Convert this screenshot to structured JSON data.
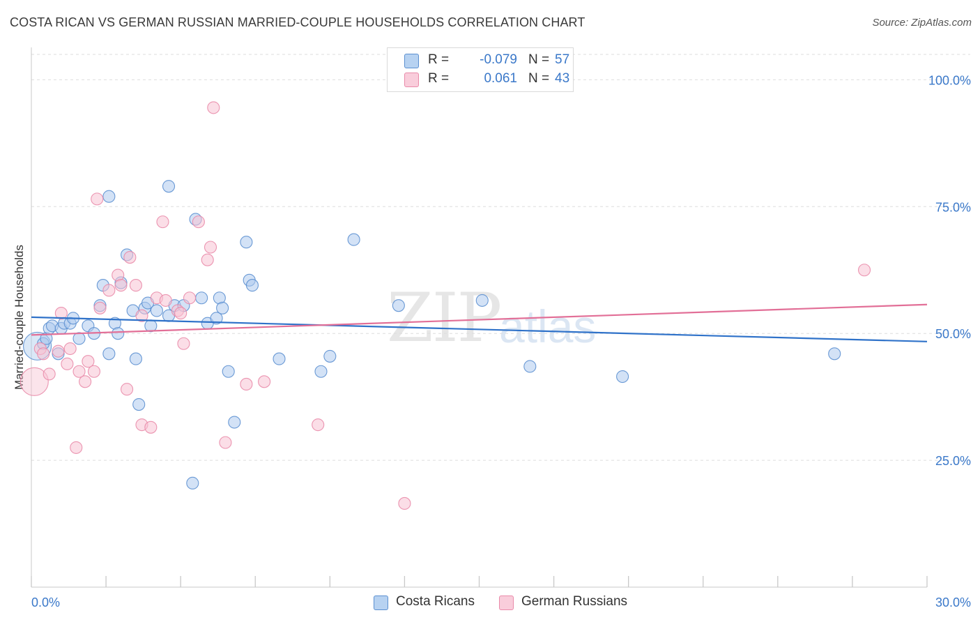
{
  "title": "COSTA RICAN VS GERMAN RUSSIAN MARRIED-COUPLE HOUSEHOLDS CORRELATION CHART",
  "source": "Source: ZipAtlas.com",
  "watermark": {
    "zip": "ZIP",
    "atlas": "atlas"
  },
  "legend": {
    "r_label": "R =",
    "n_label": "N =",
    "rows": [
      {
        "r": "-0.079",
        "n": "57",
        "color": "#9cc0ea"
      },
      {
        "r": "0.061",
        "n": "43",
        "color": "#f4b3c7"
      }
    ]
  },
  "bottom_legend": [
    "Costa Ricans",
    "German Russians"
  ],
  "colors": {
    "blue_fill": "#aecbee",
    "blue_stroke": "#5b8fd0",
    "blue_line": "#2f72c9",
    "pink_fill": "#f7c3d3",
    "pink_stroke": "#e98aa9",
    "pink_line": "#e26f97",
    "tick_label": "#3a78c9"
  },
  "chart_data": {
    "type": "scatter",
    "title": "COSTA RICAN VS GERMAN RUSSIAN MARRIED-COUPLE HOUSEHOLDS CORRELATION CHART",
    "xlabel": "",
    "ylabel": "Married-couple Households",
    "xlim": [
      0,
      30
    ],
    "ylim": [
      0,
      105
    ],
    "x_tick_labels": [
      "0.0%",
      "30.0%"
    ],
    "y_ticks": [
      25,
      50,
      75,
      100
    ],
    "y_tick_labels": [
      "25.0%",
      "50.0%",
      "75.0%",
      "100.0%"
    ],
    "grid": true,
    "series": [
      {
        "name": "Costa Ricans",
        "r": -0.079,
        "n": 57,
        "trend": {
          "x": [
            0,
            30
          ],
          "y": [
            53.2,
            48.4
          ]
        },
        "points": [
          {
            "x": 0.2,
            "y": 47.5,
            "big": true
          },
          {
            "x": 0.4,
            "y": 48.0
          },
          {
            "x": 0.5,
            "y": 49.0
          },
          {
            "x": 0.6,
            "y": 51.0
          },
          {
            "x": 0.7,
            "y": 51.5
          },
          {
            "x": 0.9,
            "y": 46.0
          },
          {
            "x": 1.0,
            "y": 51.0
          },
          {
            "x": 1.1,
            "y": 52.0
          },
          {
            "x": 1.3,
            "y": 52.0
          },
          {
            "x": 1.4,
            "y": 53.0
          },
          {
            "x": 1.6,
            "y": 49.0
          },
          {
            "x": 1.9,
            "y": 51.5
          },
          {
            "x": 2.1,
            "y": 50.0
          },
          {
            "x": 2.3,
            "y": 55.5
          },
          {
            "x": 2.4,
            "y": 59.5
          },
          {
            "x": 2.6,
            "y": 77.0
          },
          {
            "x": 2.6,
            "y": 46.0
          },
          {
            "x": 2.8,
            "y": 52.0
          },
          {
            "x": 2.9,
            "y": 50.0
          },
          {
            "x": 3.0,
            "y": 60.0
          },
          {
            "x": 3.2,
            "y": 65.5
          },
          {
            "x": 3.4,
            "y": 54.5
          },
          {
            "x": 3.5,
            "y": 45.0
          },
          {
            "x": 3.6,
            "y": 36.0
          },
          {
            "x": 3.8,
            "y": 55.0
          },
          {
            "x": 3.9,
            "y": 56.0
          },
          {
            "x": 4.0,
            "y": 51.5
          },
          {
            "x": 4.2,
            "y": 54.5
          },
          {
            "x": 4.6,
            "y": 53.5
          },
          {
            "x": 4.6,
            "y": 79.0
          },
          {
            "x": 4.8,
            "y": 55.5
          },
          {
            "x": 5.1,
            "y": 55.5
          },
          {
            "x": 5.4,
            "y": 20.5
          },
          {
            "x": 5.5,
            "y": 72.5
          },
          {
            "x": 5.7,
            "y": 57.0
          },
          {
            "x": 5.9,
            "y": 52.0
          },
          {
            "x": 6.2,
            "y": 53.0
          },
          {
            "x": 6.3,
            "y": 57.0
          },
          {
            "x": 6.4,
            "y": 55.0
          },
          {
            "x": 6.6,
            "y": 42.5
          },
          {
            "x": 6.8,
            "y": 32.5
          },
          {
            "x": 7.2,
            "y": 68.0
          },
          {
            "x": 7.3,
            "y": 60.5
          },
          {
            "x": 7.4,
            "y": 59.5
          },
          {
            "x": 8.3,
            "y": 45.0
          },
          {
            "x": 9.7,
            "y": 42.5
          },
          {
            "x": 10.0,
            "y": 45.5
          },
          {
            "x": 10.8,
            "y": 68.5
          },
          {
            "x": 12.3,
            "y": 55.5
          },
          {
            "x": 15.1,
            "y": 56.5
          },
          {
            "x": 16.7,
            "y": 43.5
          },
          {
            "x": 19.8,
            "y": 41.5
          },
          {
            "x": 26.9,
            "y": 46.0
          }
        ]
      },
      {
        "name": "German Russians",
        "r": 0.061,
        "n": 43,
        "trend": {
          "x": [
            0,
            30
          ],
          "y": [
            49.7,
            55.7
          ]
        },
        "points": [
          {
            "x": 0.1,
            "y": 40.5,
            "big": true
          },
          {
            "x": 0.3,
            "y": 47.0
          },
          {
            "x": 0.4,
            "y": 46.0
          },
          {
            "x": 0.6,
            "y": 42.0
          },
          {
            "x": 0.9,
            "y": 46.5
          },
          {
            "x": 1.0,
            "y": 54.0
          },
          {
            "x": 1.2,
            "y": 44.0
          },
          {
            "x": 1.3,
            "y": 47.0
          },
          {
            "x": 1.5,
            "y": 27.5
          },
          {
            "x": 1.6,
            "y": 42.5
          },
          {
            "x": 1.8,
            "y": 40.5
          },
          {
            "x": 1.9,
            "y": 44.5
          },
          {
            "x": 2.1,
            "y": 42.5
          },
          {
            "x": 2.2,
            "y": 76.5
          },
          {
            "x": 2.3,
            "y": 55.0
          },
          {
            "x": 2.6,
            "y": 58.5
          },
          {
            "x": 2.9,
            "y": 61.5
          },
          {
            "x": 3.0,
            "y": 59.5
          },
          {
            "x": 3.2,
            "y": 39.0
          },
          {
            "x": 3.3,
            "y": 65.0
          },
          {
            "x": 3.5,
            "y": 59.5
          },
          {
            "x": 3.7,
            "y": 53.5
          },
          {
            "x": 3.7,
            "y": 32.0
          },
          {
            "x": 4.0,
            "y": 31.5
          },
          {
            "x": 4.2,
            "y": 57.0
          },
          {
            "x": 4.4,
            "y": 72.0
          },
          {
            "x": 4.5,
            "y": 56.5
          },
          {
            "x": 4.9,
            "y": 54.5
          },
          {
            "x": 5.0,
            "y": 54.0
          },
          {
            "x": 5.1,
            "y": 48.0
          },
          {
            "x": 5.3,
            "y": 57.0
          },
          {
            "x": 5.6,
            "y": 72.0
          },
          {
            "x": 5.9,
            "y": 64.5
          },
          {
            "x": 6.0,
            "y": 67.0
          },
          {
            "x": 6.1,
            "y": 94.5
          },
          {
            "x": 6.5,
            "y": 28.5
          },
          {
            "x": 7.2,
            "y": 40.0
          },
          {
            "x": 7.8,
            "y": 40.5
          },
          {
            "x": 9.6,
            "y": 32.0
          },
          {
            "x": 12.5,
            "y": 16.5
          },
          {
            "x": 27.9,
            "y": 62.5
          }
        ]
      }
    ]
  }
}
